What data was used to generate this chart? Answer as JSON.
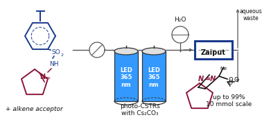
{
  "bg_color": "#ffffff",
  "dark_blue": "#1a3a8c",
  "crimson": "#8B1538",
  "black": "#111111",
  "blue_led": "#3399FF",
  "zaiput_blue": "#1a3a8c",
  "gray": "#555555",
  "labels": {
    "alkene_acceptor": "+ alkene acceptor",
    "photo_cstrs": "photo-CSTRs",
    "with_cs2co3": "with Cs₂CO₃",
    "h2o": "H₂O",
    "aqueous_waste": "aqueous\nwaste",
    "zaiput": "Zaiput",
    "led": "LED\n365\nnm",
    "up_to": "up to 99%\n10 mmol scale"
  },
  "fig_w": 3.78,
  "fig_h": 1.76,
  "dpi": 100
}
